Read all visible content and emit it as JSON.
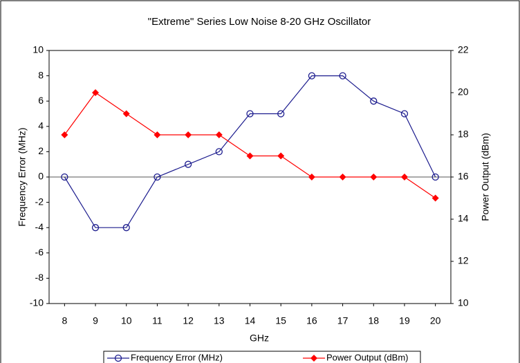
{
  "chart_data": {
    "type": "line",
    "title": "\"Extreme\" Series Low Noise 8-20 GHz Oscillator",
    "xlabel": "GHz",
    "ylabel": "Frequency Error (MHz)",
    "y2label": "Power Output (dBm)",
    "x": [
      8,
      9,
      10,
      11,
      12,
      13,
      14,
      15,
      16,
      17,
      18,
      19,
      20
    ],
    "xlim": [
      7.5,
      20.5
    ],
    "xticks": [
      8,
      9,
      10,
      11,
      12,
      13,
      14,
      15,
      16,
      17,
      18,
      19,
      20
    ],
    "ylim": [
      -10,
      10
    ],
    "yticks": [
      -10,
      -8,
      -6,
      -4,
      -2,
      0,
      2,
      4,
      6,
      8,
      10
    ],
    "y2lim": [
      10,
      22
    ],
    "y2ticks": [
      10,
      12,
      14,
      16,
      18,
      20,
      22
    ],
    "grid": false,
    "legend": "bottom",
    "series": [
      {
        "name": "Frequency Error (MHz)",
        "color": "#1c1c8e",
        "marker": "circle",
        "values": [
          0,
          -4,
          -4,
          0,
          1,
          2,
          5,
          5,
          8,
          8,
          6,
          5,
          0
        ]
      },
      {
        "name": "Power Output (dBm)",
        "color": "#ff0000",
        "marker": "diamond",
        "axis": "y2",
        "values": [
          18,
          20,
          19,
          18,
          18,
          18,
          17,
          17,
          16,
          16,
          16,
          16,
          15
        ]
      }
    ]
  }
}
